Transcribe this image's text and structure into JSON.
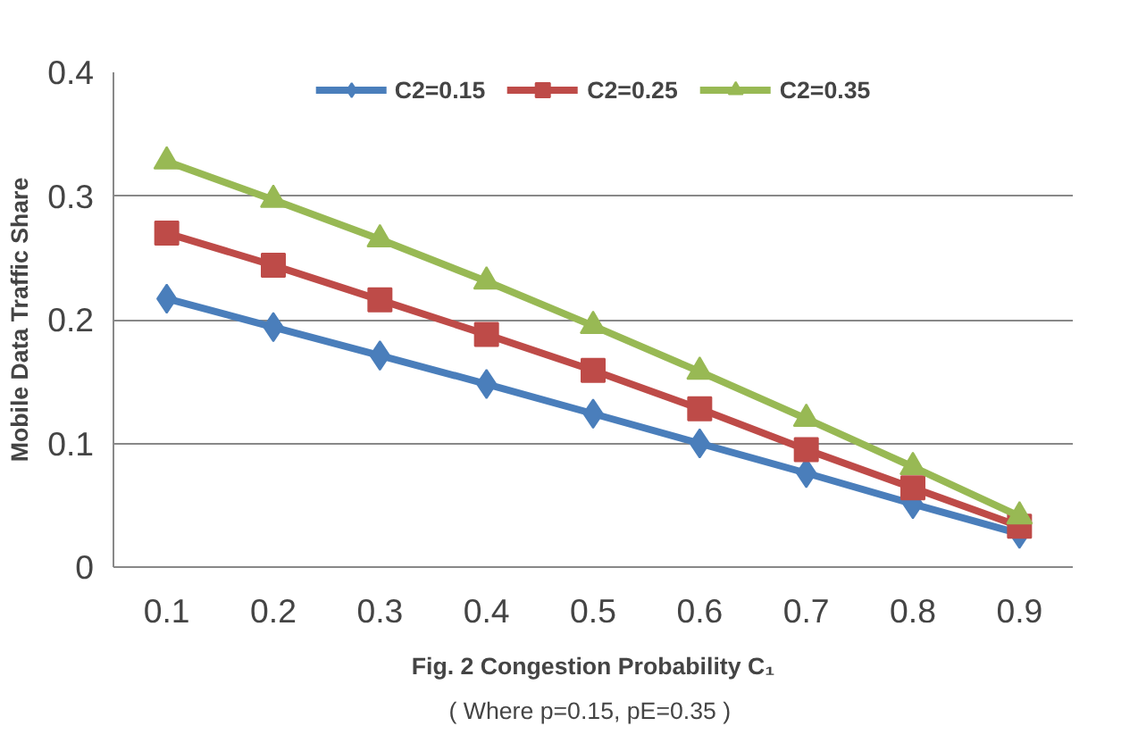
{
  "chart_data": {
    "type": "line",
    "xlabel": "Fig. 2 Congestion Probability C₁",
    "ylabel": "Mobile Data Traffic Share",
    "annotations": [
      "( Where  p=0.15, pE=0.35 )"
    ],
    "categories": [
      "0.1",
      "0.2",
      "0.3",
      "0.4",
      "0.5",
      "0.6",
      "0.7",
      "0.8",
      "0.9"
    ],
    "series": [
      {
        "name": "C2=0.15",
        "color": "#4a7ebb",
        "marker": "diamond",
        "values": [
          0.217,
          0.194,
          0.171,
          0.148,
          0.124,
          0.1,
          0.076,
          0.051,
          0.027
        ]
      },
      {
        "name": "C2=0.25",
        "color": "#be4b48",
        "marker": "square",
        "values": [
          0.27,
          0.244,
          0.216,
          0.188,
          0.159,
          0.128,
          0.095,
          0.064,
          0.033
        ]
      },
      {
        "name": "C2=0.35",
        "color": "#98b954",
        "marker": "triangle",
        "values": [
          0.328,
          0.297,
          0.265,
          0.231,
          0.195,
          0.158,
          0.12,
          0.081,
          0.041
        ]
      }
    ],
    "ylim": [
      0,
      0.4
    ],
    "yticks": [
      0,
      0.1,
      0.2,
      0.3,
      0.4
    ],
    "grid": "y",
    "legend": "top",
    "line_style": "solid"
  }
}
